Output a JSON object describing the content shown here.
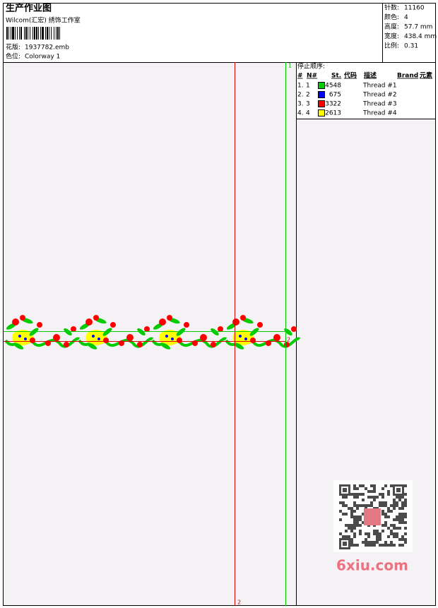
{
  "header": {
    "title": "生产作业图",
    "studio": "Wilcom(汇宏) 绣饰工作室",
    "design_label": "花版:",
    "design": "1937782.emb",
    "colorway_label": "色位:",
    "colorway": "Colorway 1"
  },
  "stats": [
    {
      "label": "针数:",
      "value": "11160"
    },
    {
      "label": "颜色:",
      "value": "4"
    },
    {
      "label": "高度:",
      "value": "57.7 mm"
    },
    {
      "label": "宽度:",
      "value": "438.4 mm"
    },
    {
      "label": "比例:",
      "value": "0.31"
    }
  ],
  "stop_sequence": {
    "title": "停止顺序:",
    "columns": [
      "#",
      "N#",
      "St.",
      "代码",
      "描述",
      "Brand",
      "元素"
    ],
    "rows": [
      {
        "index": "1.",
        "needle": "1",
        "color": "#00cc00",
        "stitches": "4548",
        "description": "Thread #1"
      },
      {
        "index": "2.",
        "needle": "2",
        "color": "#0000ff",
        "stitches": "675",
        "description": "Thread #2"
      },
      {
        "index": "3.",
        "needle": "3",
        "color": "#ff0000",
        "stitches": "3322",
        "description": "Thread #3"
      },
      {
        "index": "4.",
        "needle": "4",
        "color": "#ffff00",
        "stitches": "2613",
        "description": "Thread #4"
      }
    ]
  },
  "markers": {
    "vertical_green": "1",
    "vertical_red": "2",
    "horizontal_red": "2"
  },
  "watermark": "6xiu.com"
}
